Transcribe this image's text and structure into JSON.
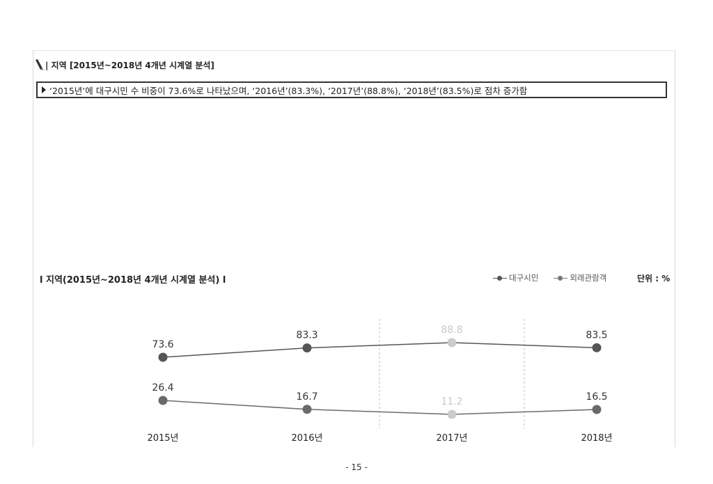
{
  "section": {
    "heading": "| 지역 [2015년~2018년 4개년 시계열 분석]",
    "summary": "‘2015년’에 대구시민 수 비중이 73.6%로 나타났으며, ‘2016년’(83.3%), ‘2017년’(88.8%), ‘2018년’(83.5%)로 점차 증가함"
  },
  "chart_data": {
    "type": "line",
    "title": "l 지역(2015년~2018년  4개년 시계열 분석) l",
    "unit_label": "단위 : %",
    "categories": [
      "2015년",
      "2016년",
      "2017년",
      "2018년"
    ],
    "highlight_category": "2017년",
    "series": [
      {
        "name": "대구시민",
        "values": [
          73.6,
          83.3,
          88.8,
          83.5
        ],
        "labels": [
          "73.6",
          "83.3",
          "88.8",
          "83.5"
        ],
        "color": "#555555"
      },
      {
        "name": "외래관람객",
        "values": [
          26.4,
          16.7,
          11.2,
          16.5
        ],
        "labels": [
          "26.4",
          "16.7",
          "11.2",
          "16.5"
        ],
        "color": "#6a6a6a"
      }
    ],
    "highlight_color": "#cccccc",
    "legend_position": "top-right",
    "grid": false
  },
  "footer": {
    "page_number": "- 15 -"
  }
}
